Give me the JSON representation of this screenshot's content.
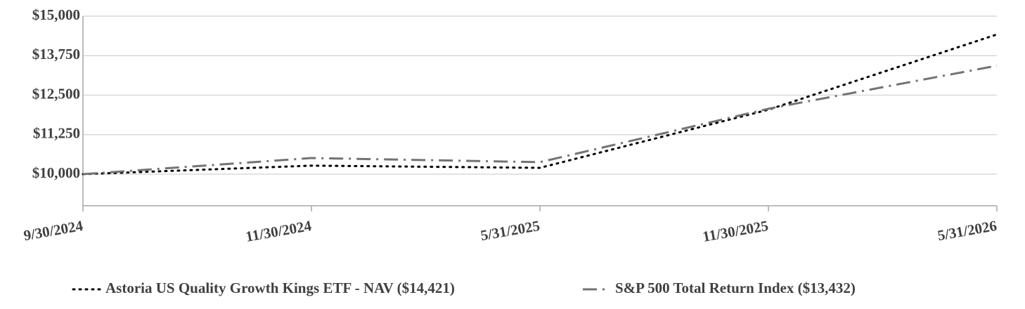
{
  "chart_data": {
    "type": "line",
    "categories": [
      "9/30/2024",
      "11/30/2024",
      "5/31/2025",
      "11/30/2025",
      "5/31/2026"
    ],
    "series": [
      {
        "name": "Astoria US Quality Growth Kings ETF - NAV ($14,421)",
        "color": "#000000",
        "line_style": "dot",
        "values": [
          10000,
          10270,
          10200,
          12040,
          14421
        ]
      },
      {
        "name": "S&P 500 Total Return Index  ($13,432)",
        "color": "#737373",
        "line_style": "dashdot",
        "values": [
          10000,
          10510,
          10380,
          12070,
          13432
        ]
      }
    ],
    "ylim": [
      9000,
      15000
    ],
    "yticks": [
      {
        "value": 10000,
        "label": "$10,000"
      },
      {
        "value": 11250,
        "label": "$11,250"
      },
      {
        "value": 12500,
        "label": "$12,500"
      },
      {
        "value": 13750,
        "label": "$13,750"
      },
      {
        "value": 15000,
        "label": "$15,000"
      }
    ],
    "grid": true,
    "legend": "bottom"
  }
}
